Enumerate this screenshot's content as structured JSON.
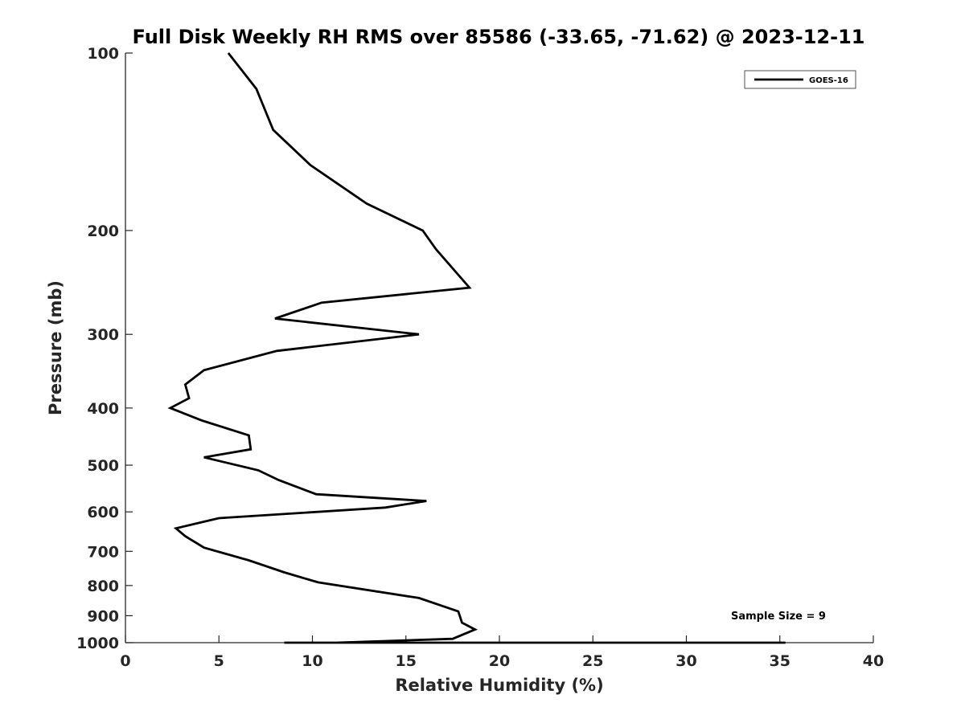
{
  "chart_data": {
    "type": "line",
    "title": "Full Disk Weekly RH RMS over 85586 (-33.65, -71.62) @ 2023-12-11",
    "xlabel": "Relative Humidity (%)",
    "ylabel": "Pressure (mb)",
    "xlim": [
      0,
      40
    ],
    "ylim": [
      100,
      1000
    ],
    "yscale": "log",
    "y_reversed": true,
    "grid": false,
    "legend_position": "top-right",
    "x_ticks": [
      0,
      5,
      10,
      15,
      20,
      25,
      30,
      35,
      40
    ],
    "y_ticks": [
      100,
      200,
      300,
      400,
      500,
      600,
      700,
      800,
      900,
      1000
    ],
    "annotation": "Sample Size = 9",
    "series": [
      {
        "name": "GOES-16",
        "color": "#000000",
        "x": [
          5.5,
          7.0,
          7.9,
          9.9,
          12.9,
          15.9,
          16.6,
          18.4,
          10.5,
          8.0,
          15.7,
          8.1,
          4.2,
          3.2,
          3.4,
          2.4,
          4.1,
          6.6,
          6.7,
          4.2,
          7.1,
          8.2,
          10.2,
          16.1,
          13.9,
          5.0,
          2.7,
          3.2,
          4.2,
          6.6,
          8.5,
          10.3,
          15.7,
          17.8,
          18.0,
          18.7,
          17.5,
          11.3,
          8.5,
          22.7,
          34.5,
          35.3
        ],
        "y": [
          100,
          115,
          135,
          155,
          180,
          200,
          215,
          250,
          265,
          282,
          300,
          320,
          345,
          365,
          385,
          400,
          420,
          445,
          470,
          485,
          510,
          530,
          560,
          575,
          590,
          615,
          640,
          660,
          690,
          725,
          760,
          790,
          840,
          885,
          925,
          950,
          985,
          1000,
          1012,
          1020,
          1050,
          1060
        ]
      }
    ]
  }
}
